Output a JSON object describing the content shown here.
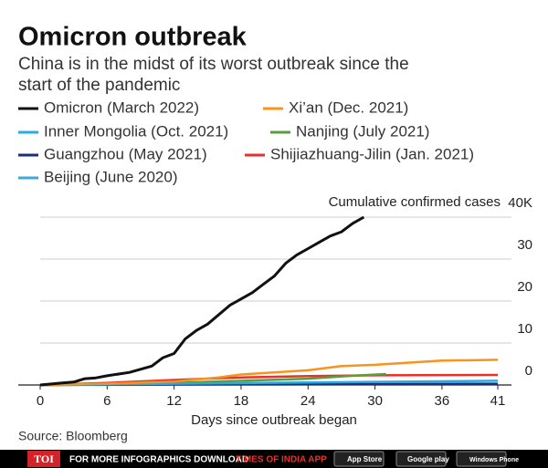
{
  "chart_data": {
    "type": "line",
    "title": "Omicron outbreak",
    "subtitle": [
      "China is in the midst of its worst outbreak since the",
      "start of the pandemic"
    ],
    "ylabel": "Cumulative confirmed cases",
    "xlabel": "Days since outbreak began",
    "source": "Source: Bloomberg",
    "xlim": [
      0,
      41
    ],
    "xticks": [
      0,
      6,
      12,
      18,
      24,
      30,
      36,
      41
    ],
    "ylim": [
      0,
      40
    ],
    "yticks": [
      0,
      10,
      20,
      30,
      {
        "value": 40,
        "label": "40K"
      }
    ],
    "grid": true,
    "series": [
      {
        "name": "Omicron (March 2022)",
        "color": "#111111",
        "x": [
          0,
          2,
          3,
          4,
          5,
          6,
          8,
          10,
          11,
          12,
          13,
          14,
          15,
          17,
          18,
          19,
          20,
          21,
          22,
          23,
          24,
          25,
          26,
          27,
          28,
          29
        ],
        "values": [
          0,
          0.5,
          0.7,
          1.5,
          1.7,
          2.2,
          3,
          4.5,
          6.5,
          7.5,
          11,
          13,
          14.5,
          19,
          20.5,
          22,
          24,
          26,
          29,
          31,
          32.5,
          34,
          35.5,
          36.5,
          38.5,
          40
        ]
      },
      {
        "name": "Xi’an (Dec. 2021)",
        "color": "#f7941d",
        "x": [
          0,
          6,
          12,
          16,
          18,
          24,
          27,
          30,
          36,
          41
        ],
        "values": [
          0,
          0.3,
          0.8,
          1.8,
          2.5,
          3.5,
          4.5,
          4.8,
          5.8,
          6
        ]
      },
      {
        "name": "Inner Mongolia (Oct. 2021)",
        "color": "#29abe2",
        "x": [
          0,
          12,
          24,
          41
        ],
        "values": [
          0,
          0.3,
          0.6,
          1
        ]
      },
      {
        "name": "Nanjing (July 2021)",
        "color": "#5a9e3c",
        "x": [
          0,
          12,
          24,
          28,
          31
        ],
        "values": [
          0,
          0.5,
          1.5,
          2.2,
          2.6
        ]
      },
      {
        "name": "Guangzhou (May 2021)",
        "color": "#1b2f7a",
        "x": [
          0,
          12,
          24,
          41
        ],
        "values": [
          0,
          0.1,
          0.15,
          0.2
        ]
      },
      {
        "name": "Shijiazhuang-Jilin (Jan. 2021)",
        "color": "#e8312b",
        "x": [
          0,
          6,
          12,
          18,
          24,
          30,
          41
        ],
        "values": [
          0,
          0.5,
          1.2,
          1.8,
          2.1,
          2.3,
          2.4
        ]
      },
      {
        "name": "Beijing (June 2020)",
        "color": "#3fa9d6",
        "x": [
          0,
          12,
          24,
          41
        ],
        "values": [
          0,
          0.2,
          0.3,
          0.4
        ]
      }
    ]
  },
  "footer": {
    "logo": "TOI",
    "text": "FOR MORE  INFOGRAPHICS DOWNLOAD",
    "app": "TIMES OF INDIA APP",
    "badges": [
      "App Store",
      "Google play",
      "Windows Phone"
    ]
  }
}
